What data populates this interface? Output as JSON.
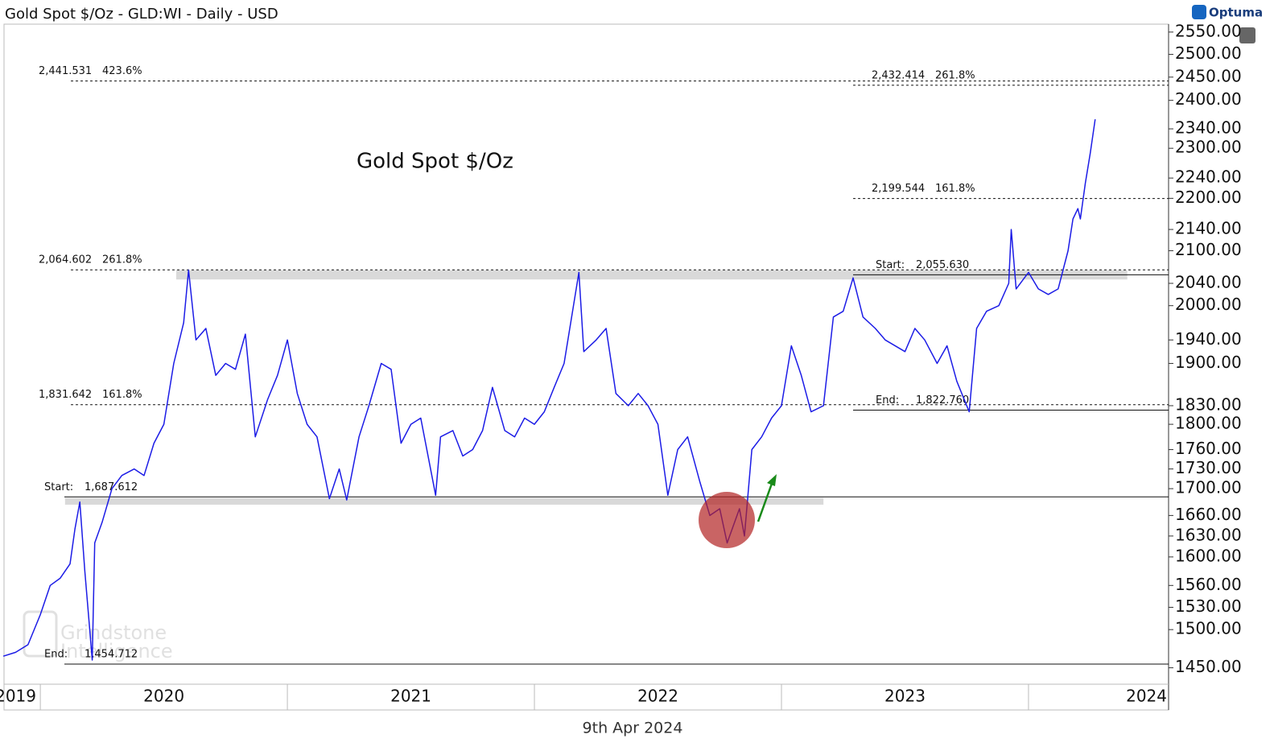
{
  "chart_data": {
    "type": "line",
    "title": "Gold Spot $/Oz - GLD:WI - Daily - USD",
    "chart_label": "Gold Spot $/Oz",
    "date_label": "9th Apr 2024",
    "brand": "Optuma",
    "watermark": [
      "Grindstone",
      "Intelligence"
    ],
    "log_scale": true,
    "x": [
      2019.85,
      2019.9,
      2019.95,
      2020.0,
      2020.04,
      2020.08,
      2020.12,
      2020.14,
      2020.16,
      2020.18,
      2020.2,
      2020.21,
      2020.22,
      2020.25,
      2020.29,
      2020.33,
      2020.38,
      2020.42,
      2020.46,
      2020.5,
      2020.54,
      2020.58,
      2020.6,
      2020.63,
      2020.67,
      2020.71,
      2020.75,
      2020.79,
      2020.83,
      2020.87,
      2020.92,
      2020.96,
      2021.0,
      2021.04,
      2021.08,
      2021.12,
      2021.17,
      2021.21,
      2021.24,
      2021.29,
      2021.33,
      2021.38,
      2021.42,
      2021.46,
      2021.5,
      2021.54,
      2021.6,
      2021.62,
      2021.67,
      2021.71,
      2021.75,
      2021.79,
      2021.83,
      2021.88,
      2021.92,
      2021.96,
      2022.0,
      2022.04,
      2022.08,
      2022.12,
      2022.18,
      2022.2,
      2022.25,
      2022.29,
      2022.33,
      2022.38,
      2022.42,
      2022.46,
      2022.5,
      2022.54,
      2022.58,
      2022.62,
      2022.67,
      2022.71,
      2022.75,
      2022.78,
      2022.83,
      2022.85,
      2022.88,
      2022.92,
      2022.96,
      2023.0,
      2023.04,
      2023.08,
      2023.12,
      2023.17,
      2023.21,
      2023.25,
      2023.29,
      2023.33,
      2023.38,
      2023.42,
      2023.5,
      2023.54,
      2023.58,
      2023.63,
      2023.67,
      2023.71,
      2023.76,
      2023.79,
      2023.83,
      2023.88,
      2023.92,
      2023.93,
      2023.95,
      2024.0,
      2024.04,
      2024.08,
      2024.12,
      2024.16,
      2024.18,
      2024.2,
      2024.21,
      2024.23,
      2024.25,
      2024.27
    ],
    "series": [
      {
        "name": "Gold Spot $/Oz",
        "color": "#1c1ce6",
        "values": [
          1465,
          1470,
          1480,
          1520,
          1560,
          1570,
          1590,
          1640,
          1680,
          1580,
          1500,
          1460,
          1620,
          1650,
          1700,
          1720,
          1730,
          1720,
          1770,
          1800,
          1900,
          1970,
          2064,
          1940,
          1960,
          1880,
          1900,
          1890,
          1950,
          1780,
          1840,
          1880,
          1940,
          1850,
          1800,
          1780,
          1685,
          1730,
          1683,
          1780,
          1830,
          1900,
          1890,
          1770,
          1800,
          1810,
          1690,
          1780,
          1790,
          1750,
          1760,
          1790,
          1860,
          1790,
          1780,
          1810,
          1800,
          1820,
          1860,
          1900,
          2060,
          1920,
          1940,
          1960,
          1850,
          1830,
          1850,
          1830,
          1800,
          1690,
          1760,
          1780,
          1710,
          1660,
          1670,
          1620,
          1670,
          1630,
          1760,
          1780,
          1810,
          1830,
          1930,
          1880,
          1820,
          1830,
          1980,
          1990,
          2050,
          1980,
          1960,
          1940,
          1920,
          1960,
          1940,
          1900,
          1930,
          1870,
          1820,
          1960,
          1990,
          2000,
          2040,
          2140,
          2030,
          2060,
          2030,
          2020,
          2030,
          2100,
          2160,
          2180,
          2160,
          2230,
          2290,
          2360
        ]
      }
    ],
    "xlim": [
      2019.853,
      2024.567
    ],
    "xticks": [
      {
        "value": 2019.5,
        "label": "2019"
      },
      {
        "value": 2020.5,
        "label": "2020"
      },
      {
        "value": 2021.5,
        "label": "2021"
      },
      {
        "value": 2022.5,
        "label": "2022"
      },
      {
        "value": 2023.5,
        "label": "2023"
      },
      {
        "value": 2024.5,
        "label": "2024"
      }
    ],
    "ylim": [
      1429,
      2568
    ],
    "yticks": [
      {
        "value": 2550,
        "label": "2550.00"
      },
      {
        "value": 2500,
        "label": "2500.00"
      },
      {
        "value": 2450,
        "label": "2450.00"
      },
      {
        "value": 2400,
        "label": "2400.00"
      },
      {
        "value": 2340,
        "label": "2340.00"
      },
      {
        "value": 2300,
        "label": "2300.00"
      },
      {
        "value": 2240,
        "label": "2240.00"
      },
      {
        "value": 2200,
        "label": "2200.00"
      },
      {
        "value": 2140,
        "label": "2140.00"
      },
      {
        "value": 2100,
        "label": "2100.00"
      },
      {
        "value": 2040,
        "label": "2040.00"
      },
      {
        "value": 2000,
        "label": "2000.00"
      },
      {
        "value": 1940,
        "label": "1940.00"
      },
      {
        "value": 1900,
        "label": "1900.00"
      },
      {
        "value": 1830,
        "label": "1830.00"
      },
      {
        "value": 1800,
        "label": "1800.00"
      },
      {
        "value": 1760,
        "label": "1760.00"
      },
      {
        "value": 1730,
        "label": "1730.00"
      },
      {
        "value": 1700,
        "label": "1700.00"
      },
      {
        "value": 1660,
        "label": "1660.00"
      },
      {
        "value": 1630,
        "label": "1630.00"
      },
      {
        "value": 1600,
        "label": "1600.00"
      },
      {
        "value": 1560,
        "label": "1560.00"
      },
      {
        "value": 1530,
        "label": "1530.00"
      },
      {
        "value": 1500,
        "label": "1500.00"
      },
      {
        "value": 1450,
        "label": "1450.00"
      }
    ],
    "levels": [
      {
        "value": 2441.531,
        "label": "2,441.531",
        "note": "423.6%",
        "line": "dashed",
        "side": "left"
      },
      {
        "value": 2432.414,
        "label": "2,432.414",
        "note": "261.8%",
        "line": "dashed",
        "side": "right"
      },
      {
        "value": 2199.544,
        "label": "2,199.544",
        "note": "161.8%",
        "line": "dashed",
        "side": "right"
      },
      {
        "value": 2064.602,
        "label": "2,064.602",
        "note": "261.8%",
        "line": "dashed",
        "side": "left"
      },
      {
        "value": 2055.63,
        "label": "2,055.630",
        "prefix": "Start:",
        "line": "solid",
        "side": "right"
      },
      {
        "value": 1831.642,
        "label": "1,831.642",
        "note": "161.8%",
        "line": "dashed",
        "side": "left"
      },
      {
        "value": 1822.76,
        "label": "1,822.760",
        "prefix": "End:",
        "line": "solid",
        "side": "right"
      },
      {
        "value": 1687.612,
        "label": "1,687.612",
        "prefix": "Start:",
        "line": "solid",
        "side": "left"
      },
      {
        "value": 1454.712,
        "label": "1,454.712",
        "prefix": "End:",
        "line": "solid",
        "side": "left"
      }
    ],
    "zones": [
      {
        "ylim": [
          2047,
          2064
        ],
        "xlim": [
          2020.55,
          2024.4
        ]
      },
      {
        "ylim": [
          1676,
          1686
        ],
        "xlim": [
          2020.1,
          2023.17
        ]
      }
    ]
  }
}
